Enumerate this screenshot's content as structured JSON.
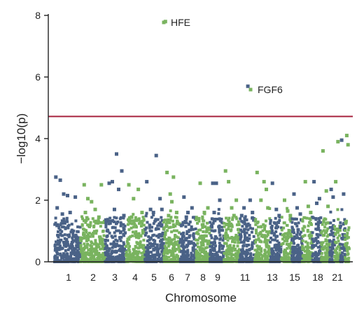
{
  "chart_data": {
    "type": "scatter",
    "title": "",
    "xlabel": "Chromosome",
    "ylabel": "−log10(p)",
    "ylim": [
      0,
      8
    ],
    "yticks": [
      0,
      2,
      4,
      6,
      8
    ],
    "grid": false,
    "legend": "none",
    "colors": {
      "odd": "#4a6287",
      "even": "#79b35f",
      "threshold": "#a8233e"
    },
    "threshold": 4.72,
    "chromosome_tick_labels": [
      "1",
      "2",
      "3",
      "4",
      "5",
      "6",
      "7",
      "8",
      "9",
      "11",
      "13",
      "15",
      "18",
      "21"
    ],
    "chromosomes": [
      {
        "chr": 1,
        "peaks": [
          [
            0.05,
            2.75
          ],
          [
            0.22,
            2.65
          ],
          [
            0.35,
            2.2
          ],
          [
            0.5,
            2.15
          ],
          [
            0.1,
            1.75
          ],
          [
            0.6,
            1.6
          ],
          [
            0.8,
            2.1
          ],
          [
            0.3,
            1.55
          ]
        ]
      },
      {
        "chr": 2,
        "peaks": [
          [
            0.15,
            2.5
          ],
          [
            0.3,
            2.05
          ],
          [
            0.45,
            1.95
          ],
          [
            0.6,
            1.7
          ],
          [
            0.85,
            2.5
          ],
          [
            0.2,
            1.6
          ],
          [
            0.75,
            1.45
          ]
        ]
      },
      {
        "chr": 3,
        "peaks": [
          [
            0.2,
            2.55
          ],
          [
            0.35,
            2.6
          ],
          [
            0.55,
            3.5
          ],
          [
            0.65,
            2.35
          ],
          [
            0.8,
            2.95
          ],
          [
            0.45,
            1.7
          ],
          [
            0.9,
            1.5
          ]
        ]
      },
      {
        "chr": 4,
        "peaks": [
          [
            0.15,
            2.5
          ],
          [
            0.4,
            2.05
          ],
          [
            0.65,
            2.35
          ],
          [
            0.85,
            1.6
          ],
          [
            0.3,
            1.45
          ]
        ]
      },
      {
        "chr": 5,
        "peaks": [
          [
            0.1,
            2.6
          ],
          [
            0.3,
            1.7
          ],
          [
            0.6,
            3.45
          ],
          [
            0.8,
            2.05
          ],
          [
            0.9,
            1.7
          ],
          [
            0.45,
            1.6
          ]
        ]
      },
      {
        "chr": 6,
        "peaks": [
          [
            0.1,
            7.8
          ],
          [
            0.2,
            2.9
          ],
          [
            0.4,
            2.2
          ],
          [
            0.6,
            2.75
          ],
          [
            0.8,
            1.6
          ],
          [
            0.5,
            1.95
          ],
          [
            0.3,
            1.5
          ]
        ]
      },
      {
        "chr": 7,
        "peaks": [
          [
            0.25,
            2.1
          ],
          [
            0.5,
            1.6
          ],
          [
            0.75,
            1.75
          ],
          [
            0.4,
            1.45
          ]
        ]
      },
      {
        "chr": 8,
        "peaks": [
          [
            0.3,
            2.55
          ],
          [
            0.6,
            1.6
          ],
          [
            0.85,
            1.75
          ],
          [
            0.2,
            1.4
          ]
        ]
      },
      {
        "chr": 9,
        "peaks": [
          [
            0.2,
            2.55
          ],
          [
            0.45,
            2.55
          ],
          [
            0.7,
            2.0
          ],
          [
            0.3,
            1.6
          ]
        ]
      },
      {
        "chr": 10,
        "peaks": [
          [
            0.1,
            2.95
          ],
          [
            0.3,
            2.6
          ],
          [
            0.5,
            1.75
          ],
          [
            0.8,
            2.0
          ],
          [
            0.65,
            1.5
          ]
        ]
      },
      {
        "chr": 11,
        "peaks": [
          [
            0.3,
            1.75
          ],
          [
            0.55,
            5.7
          ],
          [
            0.7,
            2.0
          ],
          [
            0.85,
            1.6
          ],
          [
            0.15,
            1.5
          ]
        ]
      },
      {
        "chr": 12,
        "peaks": [
          [
            0.15,
            2.9
          ],
          [
            0.4,
            2.0
          ],
          [
            0.6,
            2.6
          ],
          [
            0.75,
            2.35
          ],
          [
            0.85,
            1.75
          ]
        ]
      },
      {
        "chr": 13,
        "peaks": [
          [
            0.2,
            2.55
          ],
          [
            0.55,
            1.7
          ],
          [
            0.8,
            1.5
          ]
        ]
      },
      {
        "chr": 14,
        "peaks": [
          [
            0.3,
            2.0
          ],
          [
            0.6,
            1.65
          ],
          [
            0.85,
            1.5
          ]
        ]
      },
      {
        "chr": 15,
        "peaks": [
          [
            0.2,
            2.2
          ],
          [
            0.5,
            1.75
          ],
          [
            0.8,
            1.55
          ]
        ]
      },
      {
        "chr": 16,
        "peaks": [
          [
            0.3,
            2.6
          ],
          [
            0.6,
            1.8
          ],
          [
            0.85,
            1.6
          ]
        ]
      },
      {
        "chr": 17,
        "peaks": [
          [
            0.2,
            2.6
          ],
          [
            0.5,
            1.9
          ],
          [
            0.8,
            2.05
          ]
        ]
      },
      {
        "chr": 18,
        "peaks": [
          [
            0.2,
            3.6
          ],
          [
            0.6,
            2.3
          ],
          [
            0.8,
            1.8
          ]
        ]
      },
      {
        "chr": 19,
        "peaks": [
          [
            0.3,
            2.35
          ],
          [
            0.7,
            2.1
          ]
        ]
      },
      {
        "chr": 20,
        "peaks": [
          [
            0.2,
            2.6
          ],
          [
            0.6,
            3.9
          ]
        ]
      },
      {
        "chr": 21,
        "peaks": [
          [
            0.3,
            3.95
          ],
          [
            0.7,
            2.2
          ]
        ]
      },
      {
        "chr": 22,
        "peaks": [
          [
            0.4,
            4.1
          ],
          [
            0.7,
            3.8
          ]
        ]
      }
    ],
    "annotations": [
      {
        "label": "HFE",
        "chr": 6,
        "y": 7.8
      },
      {
        "label": "FGF6",
        "chr": 11,
        "y": 5.7
      }
    ]
  }
}
